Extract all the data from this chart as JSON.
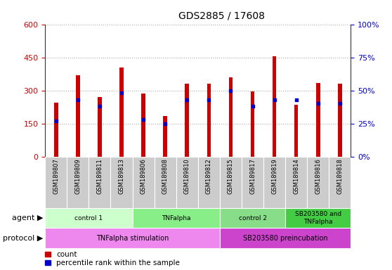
{
  "title": "GDS2885 / 17608",
  "samples": [
    "GSM189807",
    "GSM189809",
    "GSM189811",
    "GSM189813",
    "GSM189806",
    "GSM189808",
    "GSM189810",
    "GSM189812",
    "GSM189815",
    "GSM189817",
    "GSM189819",
    "GSM189814",
    "GSM189816",
    "GSM189818"
  ],
  "counts": [
    245,
    370,
    270,
    405,
    285,
    185,
    330,
    330,
    360,
    295,
    455,
    235,
    335,
    330
  ],
  "percentile_ranks": [
    27,
    43,
    38,
    48,
    28,
    25,
    43,
    43,
    50,
    38,
    43,
    43,
    40,
    40
  ],
  "ylim_left": [
    0,
    600
  ],
  "ylim_right": [
    0,
    100
  ],
  "yticks_left": [
    0,
    150,
    300,
    450,
    600
  ],
  "yticks_right": [
    0,
    25,
    50,
    75,
    100
  ],
  "bar_color": "#cc0000",
  "marker_color": "#0000cc",
  "bar_width": 0.18,
  "agent_groups": [
    {
      "label": "control 1",
      "start": 0,
      "end": 3,
      "color": "#ccffcc"
    },
    {
      "label": "TNFalpha",
      "start": 4,
      "end": 7,
      "color": "#88ee88"
    },
    {
      "label": "control 2",
      "start": 8,
      "end": 10,
      "color": "#88dd88"
    },
    {
      "label": "SB203580 and\nTNFalpha",
      "start": 11,
      "end": 13,
      "color": "#44cc44"
    }
  ],
  "protocol_groups": [
    {
      "label": "TNFalpha stimulation",
      "start": 0,
      "end": 7,
      "color": "#ee88ee"
    },
    {
      "label": "SB203580 preincubation",
      "start": 8,
      "end": 13,
      "color": "#cc44cc"
    }
  ],
  "tick_label_color_left": "#cc0000",
  "tick_label_color_right": "#0000cc",
  "grid_color": "#aaaaaa",
  "tick_bg_color": "#cccccc"
}
